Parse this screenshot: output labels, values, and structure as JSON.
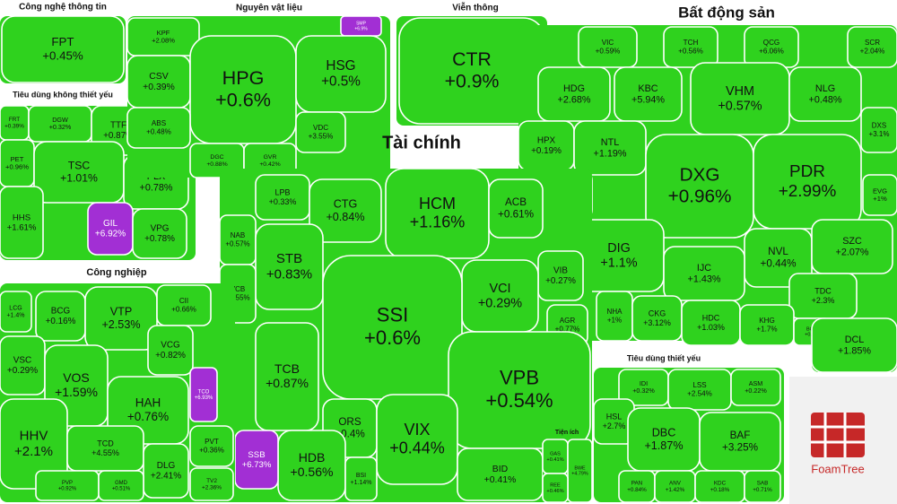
{
  "chart_data": {
    "type": "voronoi-treemap",
    "color": "#2fd21e",
    "highlight_color": "#a22fd4",
    "groups": [
      {
        "name": "Công nghệ thông tin",
        "categories": [
          "FPT"
        ],
        "values": [
          0.45
        ],
        "value_labels": [
          "+0.45%"
        ],
        "highlighted": []
      },
      {
        "name": "Tiêu dùng không thiết yếu",
        "categories": [
          "FRT",
          "DGW",
          "TTF",
          "PET",
          "TSC",
          "PLX",
          "HHS",
          "GIL",
          "VPG"
        ],
        "values": [
          0.39,
          0.32,
          0.87,
          0.96,
          1.01,
          0.78,
          1.61,
          6.92,
          0.78
        ],
        "value_labels": [
          "+0.39%",
          "+0.32%",
          "+0.87%",
          "+0.96%",
          "+1.01%",
          "+0.78%",
          "+1.61%",
          "+6.92%",
          "+0.78%"
        ],
        "highlighted": [
          "GIL"
        ]
      },
      {
        "name": "Nguyên vật liệu",
        "categories": [
          "KPF",
          "SMP",
          "CSV",
          "HPG",
          "HSG",
          "ABS",
          "DGC",
          "GVR",
          "VDC"
        ],
        "values": [
          2.08,
          6.9,
          0.39,
          0.6,
          0.5,
          0.48,
          0.88,
          0.42,
          3.55
        ],
        "value_labels": [
          "+2.08%",
          "+6.9%",
          "+0.39%",
          "+0.6%",
          "+0.5%",
          "+0.48%",
          "+0.88%",
          "+0.42%",
          "+3.55%"
        ],
        "highlighted": [
          "SMP"
        ]
      },
      {
        "name": "Viễn thông",
        "categories": [
          "CTR"
        ],
        "values": [
          0.9
        ],
        "value_labels": [
          "+0.9%"
        ],
        "highlighted": []
      },
      {
        "name": "Bất động sản",
        "categories": [
          "VIC",
          "TCH",
          "QCG",
          "SCR",
          "HDG",
          "KBC",
          "VHM",
          "NLG",
          "HPX",
          "NTL",
          "DXS",
          "DXG",
          "PDR",
          "VRE",
          "EVG",
          "DIG",
          "NVL",
          "SZC",
          "IJC",
          "TDC",
          "NHA",
          "CKG",
          "HDC",
          "KHG",
          "BCM"
        ],
        "values": [
          0.59,
          0.56,
          6.06,
          2.04,
          2.68,
          5.94,
          0.57,
          0.48,
          0.19,
          1.19,
          3.1,
          0.96,
          2.99,
          1.57,
          1,
          1.1,
          0.44,
          2.07,
          1.43,
          2.3,
          1,
          3.12,
          1.03,
          1.7,
          0.7
        ],
        "value_labels": [
          "+0.59%",
          "+0.56%",
          "+6.06%",
          "+2.04%",
          "+2.68%",
          "+5.94%",
          "+0.57%",
          "+0.48%",
          "+0.19%",
          "+1.19%",
          "+3.1%",
          "+0.96%",
          "+2.99%",
          "+1.57%",
          "+1%",
          "+1.1%",
          "+0.44%",
          "+2.07%",
          "+1.43%",
          "+2.3%",
          "+1%",
          "+3.12%",
          "+1.03%",
          "+1.7%",
          "+0.7%"
        ],
        "highlighted": []
      },
      {
        "name": "Tài chính",
        "categories": [
          "LPB",
          "CTG",
          "HCM",
          "ACB",
          "NAB",
          "STB",
          "VCB",
          "VIB",
          "VCI",
          "SSI",
          "AGR",
          "TCB",
          "VPB",
          "ORS",
          "VIX",
          "HDB",
          "SSB",
          "BSI",
          "BID"
        ],
        "values": [
          0.33,
          0.84,
          1.16,
          0.61,
          0.57,
          0.83,
          0.55,
          0.27,
          0.29,
          0.6,
          0.77,
          0.87,
          0.54,
          0.4,
          0.44,
          0.56,
          6.73,
          1.14,
          0.41
        ],
        "value_labels": [
          "+0.33%",
          "+0.84%",
          "+1.16%",
          "+0.61%",
          "+0.57%",
          "+0.83%",
          "+0.55%",
          "+0.27%",
          "+0.29%",
          "+0.6%",
          "+0.77%",
          "+0.87%",
          "+0.54%",
          "+0.4%",
          "+0.44%",
          "+0.56%",
          "+6.73%",
          "+1.14%",
          "+0.41%"
        ],
        "highlighted": [
          "SSB"
        ]
      },
      {
        "name": "Công nghiệp",
        "categories": [
          "LCG",
          "BCG",
          "VTP",
          "CII",
          "VSC",
          "VCG",
          "VOS",
          "HAH",
          "TCO",
          "HHV",
          "TCD",
          "PVT",
          "DLG",
          "PVP",
          "GMD",
          "TV2"
        ],
        "values": [
          1.4,
          0.16,
          2.53,
          0.66,
          0.29,
          0.82,
          1.59,
          0.76,
          6.93,
          2.1,
          4.55,
          0.36,
          2.41,
          0.92,
          0.51,
          2.36
        ],
        "value_labels": [
          "+1.4%",
          "+0.16%",
          "+2.53%",
          "+0.66%",
          "+0.29%",
          "+0.82%",
          "+1.59%",
          "+0.76%",
          "+6.93%",
          "+2.1%",
          "+4.55%",
          "+0.36%",
          "+2.41%",
          "+0.92%",
          "+0.51%",
          "+2.36%"
        ],
        "highlighted": [
          "TCO"
        ]
      },
      {
        "name": "Tiêu dùng thiết yếu",
        "categories": [
          "IDI",
          "LSS",
          "ASM",
          "HSL",
          "DBC",
          "BAF",
          "PAN",
          "ANV",
          "KDC",
          "SAB"
        ],
        "values": [
          0.32,
          2.54,
          0.22,
          2.7,
          1.87,
          3.25,
          0.84,
          1.42,
          0.18,
          0.71
        ],
        "value_labels": [
          "+0.32%",
          "+2.54%",
          "+0.22%",
          "+2.7%",
          "+1.87%",
          "+3.25%",
          "+0.84%",
          "+1.42%",
          "+0.18%",
          "+0.71%"
        ],
        "highlighted": []
      },
      {
        "name": "Tiện ích",
        "categories": [
          "GAS",
          "BWE",
          "REE"
        ],
        "values": [
          0.41,
          4.79,
          0.46
        ],
        "value_labels": [
          "+0.41%",
          "+4.79%",
          "+0.46%"
        ],
        "highlighted": []
      },
      {
        "categories": [
          "DCL"
        ],
        "values": [
          1.85
        ],
        "value_labels": [
          "+1.85%"
        ],
        "highlighted": []
      }
    ]
  },
  "logo": "FoamTree"
}
